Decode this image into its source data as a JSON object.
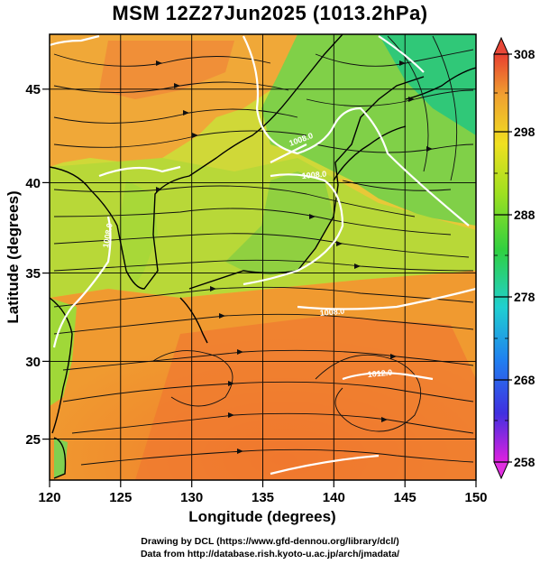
{
  "title": "MSM 12Z27Jun2025 (1013.2hPa)",
  "map": {
    "lon_ticks": [
      "120",
      "125",
      "130",
      "135",
      "140",
      "145",
      "150"
    ],
    "lat_ticks": [
      "25",
      "30",
      "35",
      "40",
      "45"
    ],
    "lon_range": [
      120,
      150
    ],
    "lat_range": [
      22.5,
      47.5
    ],
    "xlabel": "Longitude (degrees)",
    "ylabel": "Latitude  (degrees)",
    "isobar_labels": [
      "1008.0",
      "1008.0",
      "1008.0",
      "1008.0",
      "1012.0"
    ]
  },
  "colorbar": {
    "labels": [
      "308",
      "298",
      "288",
      "278",
      "268",
      "258"
    ],
    "range": [
      258,
      308
    ],
    "colors": [
      "#e020e0",
      "#3030e0",
      "#20c0f0",
      "#20d080",
      "#30d030",
      "#a0e020",
      "#f0e020",
      "#f0a020",
      "#f06030",
      "#e03030"
    ]
  },
  "credits": {
    "line1": "Drawing by DCL (https://www.gfd-dennou.org/library/dcl/)",
    "line2": "Data from http://database.rish.kyoto-u.ac.jp/arch/jmadata/"
  }
}
